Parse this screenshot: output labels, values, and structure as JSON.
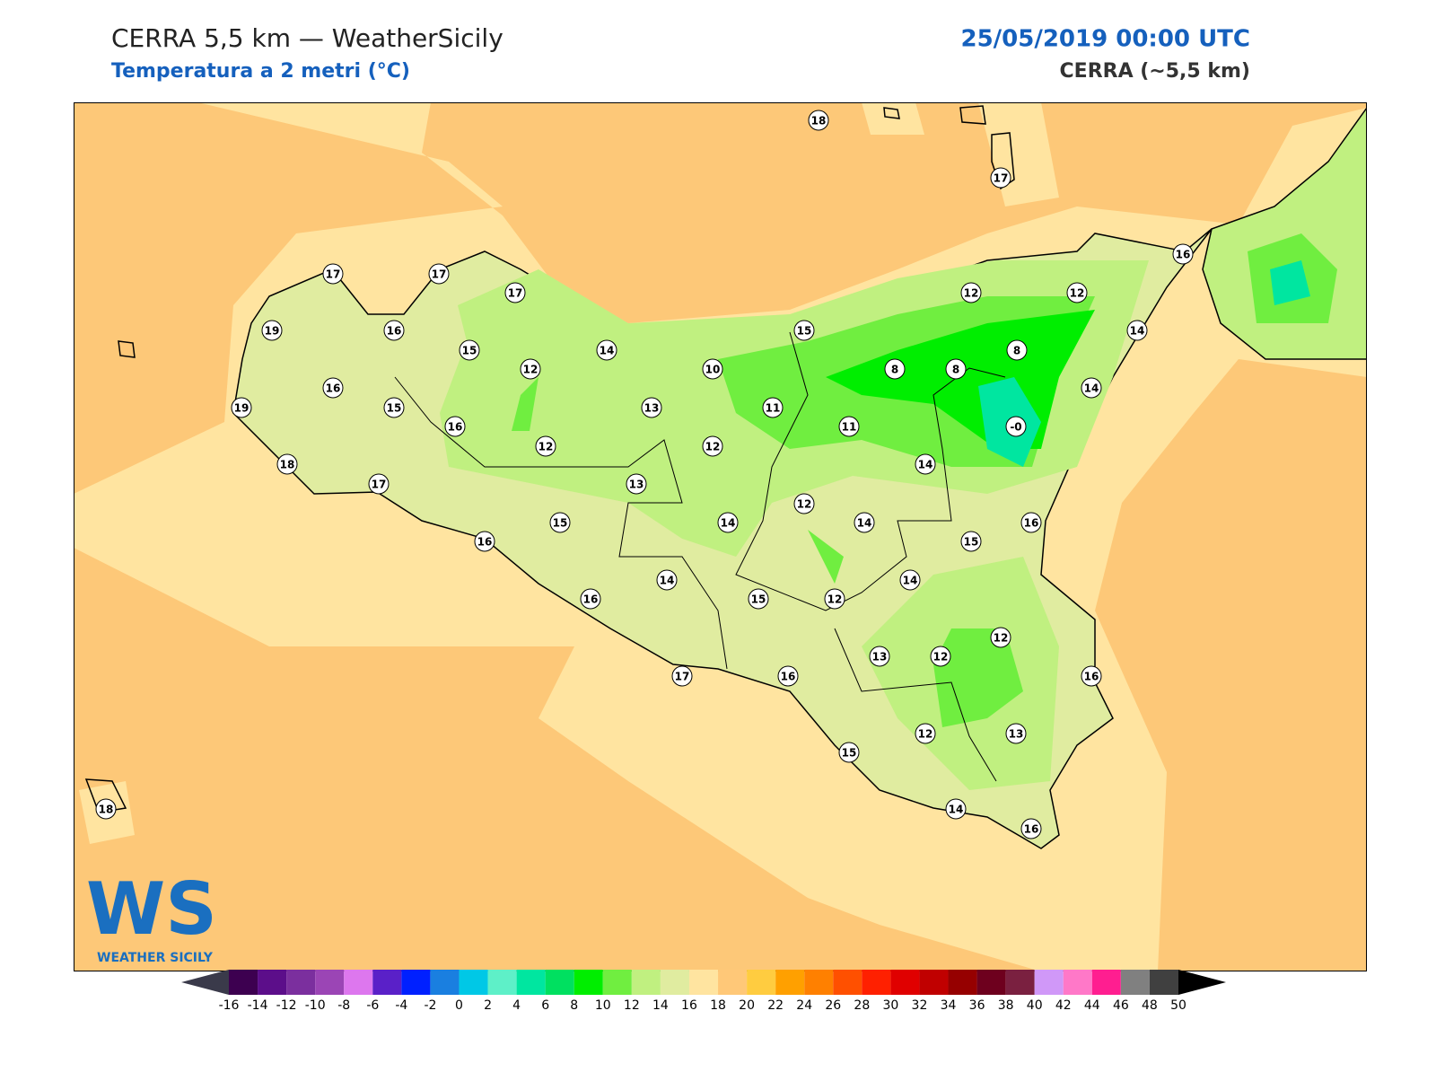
{
  "header": {
    "title": "CERRA 5,5 km — WeatherSicily",
    "subtitle": "Temperatura a 2 metri (°C)",
    "datetime": "25/05/2019 00:00 UTC",
    "model": "CERRA (~5,5 km)"
  },
  "logo": {
    "mark": "WS",
    "name": "WEATHER SICILY"
  },
  "stations": [
    18,
    17,
    17,
    17,
    17,
    16,
    12,
    12,
    19,
    16,
    15,
    14,
    15,
    14,
    8,
    8,
    8,
    12,
    10,
    16,
    14,
    19,
    15,
    13,
    11,
    16,
    11,
    {
      "value": 0,
      "label": "-0"
    },
    12,
    12,
    14,
    18,
    13,
    17,
    12,
    15,
    14,
    14,
    16,
    16,
    15,
    14,
    14,
    16,
    15,
    12,
    12,
    13,
    12,
    17,
    16,
    16,
    12,
    13,
    15,
    14,
    16,
    18
  ],
  "colorbar": {
    "ticks": [
      -16,
      -14,
      -12,
      -10,
      -8,
      -6,
      -4,
      -2,
      0,
      2,
      4,
      6,
      8,
      10,
      12,
      14,
      16,
      18,
      20,
      22,
      24,
      26,
      28,
      30,
      32,
      34,
      36,
      38,
      40,
      42,
      44,
      46,
      48,
      50
    ],
    "colors": [
      "#3d0050",
      "#5c0e8a",
      "#7b2f9e",
      "#9b45b5",
      "#dd77ee",
      "#5a20c8",
      "#0020ff",
      "#1a7fe0",
      "#00c8e6",
      "#5ef0c8",
      "#00e6a0",
      "#00e060",
      "#00ee00",
      "#70ee40",
      "#c0f080",
      "#e0eca0",
      "#ffe4a0",
      "#ffc878",
      "#ffcc40",
      "#ffa000",
      "#ff8000",
      "#ff5000",
      "#ff2000",
      "#e00000",
      "#c00000",
      "#960000",
      "#6e001e",
      "#7a2040",
      "#d098f8",
      "#ff78c8",
      "#ff1e90",
      "#808080",
      "#404040"
    ],
    "under": "#3a3a4a",
    "over": "#000000"
  }
}
